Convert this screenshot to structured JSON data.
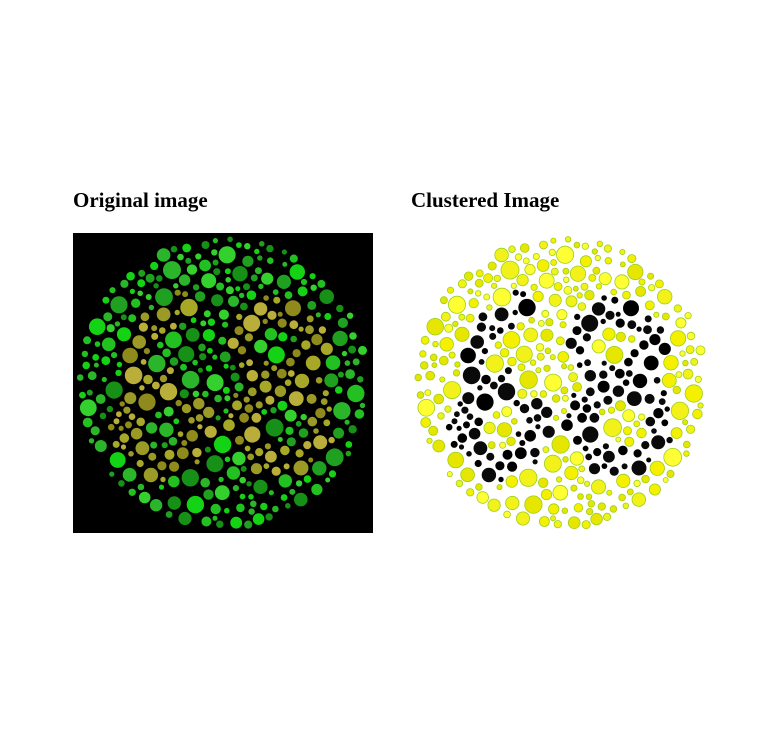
{
  "panels": {
    "original": {
      "title": "Original image",
      "background_color": "#000000",
      "dot_colors_figure": [
        "#a7a828",
        "#8f8a1c",
        "#b9ae3a",
        "#9b9a26"
      ],
      "dot_colors_field": [
        "#22c021",
        "#1fa020",
        "#33d02e",
        "#14d214",
        "#2bb52a",
        "#169016"
      ]
    },
    "clustered": {
      "title": "Clustered Image",
      "background_color": "#ffffff",
      "dot_colors_figure": [
        "#000000",
        "#0a0a0a"
      ],
      "dot_colors_field": [
        "#f5f000",
        "#ffff33",
        "#e6e600",
        "#f2f21a"
      ],
      "dot_outline_color": "#9ccf1c",
      "hidden_number": "68"
    }
  }
}
